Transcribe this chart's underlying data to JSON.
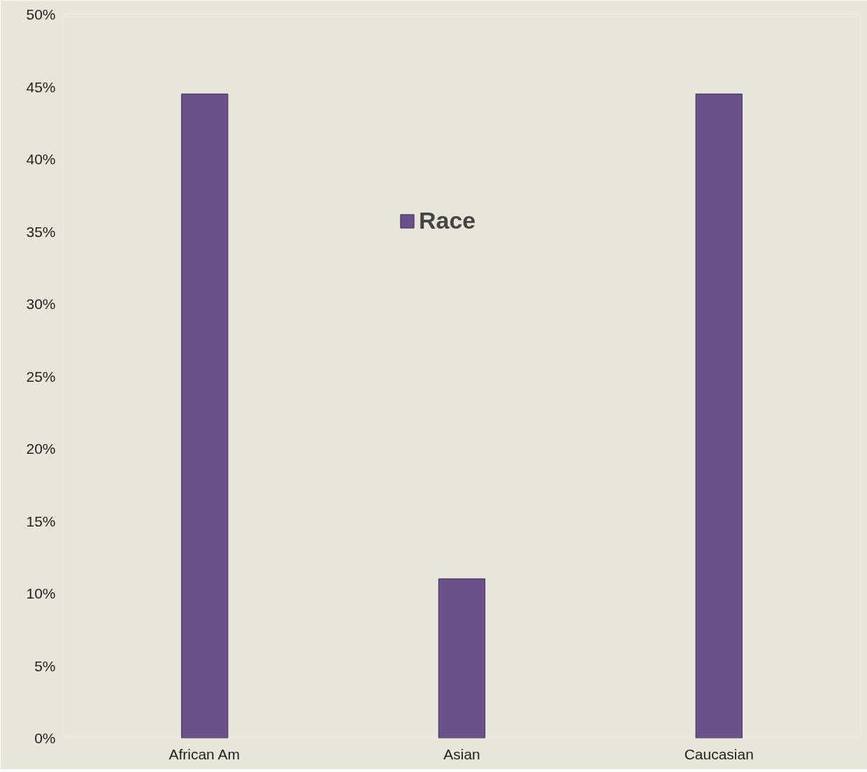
{
  "chart_data": {
    "type": "bar",
    "categories": [
      "African Am",
      "Asian",
      "Caucasian"
    ],
    "series": [
      {
        "name": "Race",
        "color": "#6a5189",
        "values": [
          44.5,
          11,
          44.5
        ]
      }
    ],
    "ylim": [
      0,
      50
    ],
    "yticks": [
      {
        "value": 0,
        "label": "0%"
      },
      {
        "value": 5,
        "label": "5%"
      },
      {
        "value": 10,
        "label": "10%"
      },
      {
        "value": 15,
        "label": "15%"
      },
      {
        "value": 20,
        "label": "20%"
      },
      {
        "value": 25,
        "label": "25%"
      },
      {
        "value": 30,
        "label": "30%"
      },
      {
        "value": 35,
        "label": "35%"
      },
      {
        "value": 40,
        "label": "40%"
      },
      {
        "value": 45,
        "label": "45%"
      },
      {
        "value": 50,
        "label": "50%"
      }
    ],
    "grid": false,
    "legend": "top"
  }
}
